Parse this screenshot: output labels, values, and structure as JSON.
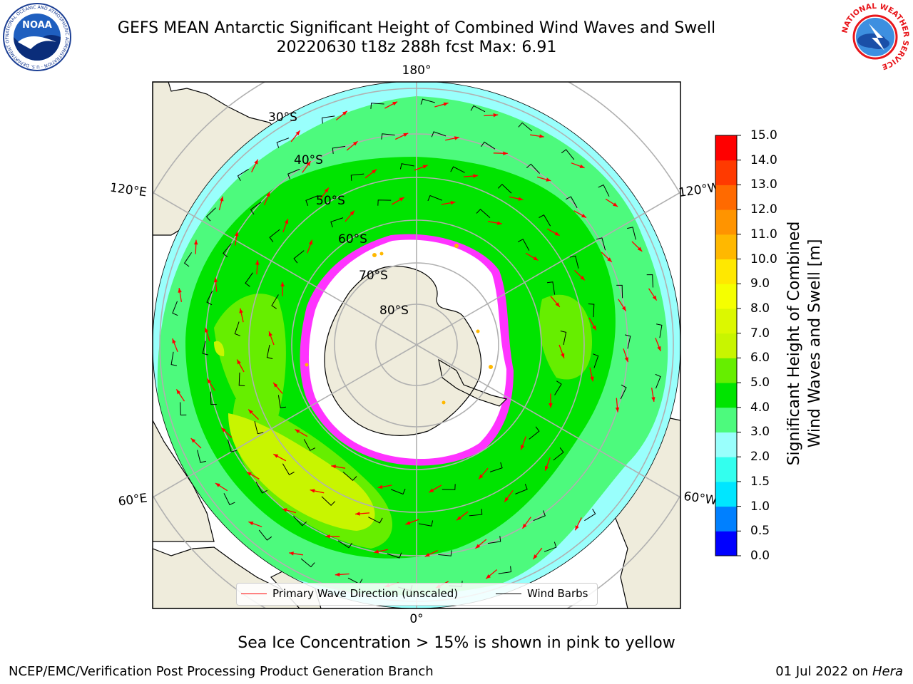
{
  "header": {
    "title_line1": "GEFS MEAN Antarctic Significant Height of Combined Wind Waves and Swell",
    "title_line2": "20220630 t18z 288h fcst   Max: 6.91"
  },
  "logos": {
    "noaa": {
      "text": "NOAA",
      "ring_text": "NATIONAL OCEANIC AND ATMOSPHERIC ADMINISTRATION · U.S. DEPARTMENT OF COMMERCE"
    },
    "nws": {
      "ring_text": "NATIONAL WEATHER SERVICE"
    }
  },
  "map": {
    "projection": "south-polar-stereographic",
    "longitude_labels": {
      "top": "180°",
      "bottom": "0°",
      "left_upper": "120°E",
      "left_lower": "60°E",
      "right_upper": "120°W",
      "right_lower": "60°W"
    },
    "latitude_labels": [
      "30°S",
      "40°S",
      "50°S",
      "60°S",
      "70°S",
      "80°S"
    ],
    "colors": {
      "land": "#efecdc",
      "ocean_low": "#9bfffd",
      "ocean_mid": "#52fa80",
      "ocean_high": "#00e800",
      "ocean_peak": "#c8f000",
      "ice": "#ffffff",
      "ice_edge": "#ff33ff",
      "grid": "#b0b0b0",
      "arrow": "#ff0000",
      "barb": "#000000"
    }
  },
  "legend": {
    "primary_wave": "Primary Wave Direction (unscaled)",
    "wind_barbs": "Wind Barbs"
  },
  "colorbar": {
    "label_line1": "Significant Height of Combined",
    "label_line2": "Wind Waves and Swell [m]",
    "ticks": [
      "15.0",
      "14.0",
      "13.0",
      "12.0",
      "11.0",
      "10.0",
      "9.0",
      "8.0",
      "7.0",
      "6.0",
      "5.0",
      "4.0",
      "3.0",
      "2.0",
      "1.5",
      "1.0",
      "0.5",
      "0.0"
    ],
    "bins": [
      {
        "from": 0.0,
        "to": 0.5,
        "color": "#0000ff"
      },
      {
        "from": 0.5,
        "to": 1.0,
        "color": "#0080ff"
      },
      {
        "from": 1.0,
        "to": 1.5,
        "color": "#00e6ff"
      },
      {
        "from": 1.5,
        "to": 2.0,
        "color": "#33ffee"
      },
      {
        "from": 2.0,
        "to": 3.0,
        "color": "#99fffc"
      },
      {
        "from": 3.0,
        "to": 4.0,
        "color": "#4dfa7d"
      },
      {
        "from": 4.0,
        "to": 5.0,
        "color": "#00e400"
      },
      {
        "from": 5.0,
        "to": 6.0,
        "color": "#66ee00"
      },
      {
        "from": 6.0,
        "to": 7.0,
        "color": "#c8f500"
      },
      {
        "from": 7.0,
        "to": 8.0,
        "color": "#dcf800"
      },
      {
        "from": 8.0,
        "to": 9.0,
        "color": "#f5ff00"
      },
      {
        "from": 9.0,
        "to": 10.0,
        "color": "#ffe800"
      },
      {
        "from": 10.0,
        "to": 11.0,
        "color": "#ffb800"
      },
      {
        "from": 11.0,
        "to": 12.0,
        "color": "#ff9400"
      },
      {
        "from": 12.0,
        "to": 13.0,
        "color": "#ff6a00"
      },
      {
        "from": 13.0,
        "to": 14.0,
        "color": "#ff3a00"
      },
      {
        "from": 14.0,
        "to": 15.0,
        "color": "#ff0000"
      }
    ]
  },
  "footer": {
    "sea_ice_note": "Sea Ice Concentration > 15% is shown in pink to yellow",
    "credit_left": "NCEP/EMC/Verification Post Processing Product Generation Branch",
    "credit_date": "01 Jul 2022 on ",
    "credit_machine": "Hera"
  }
}
